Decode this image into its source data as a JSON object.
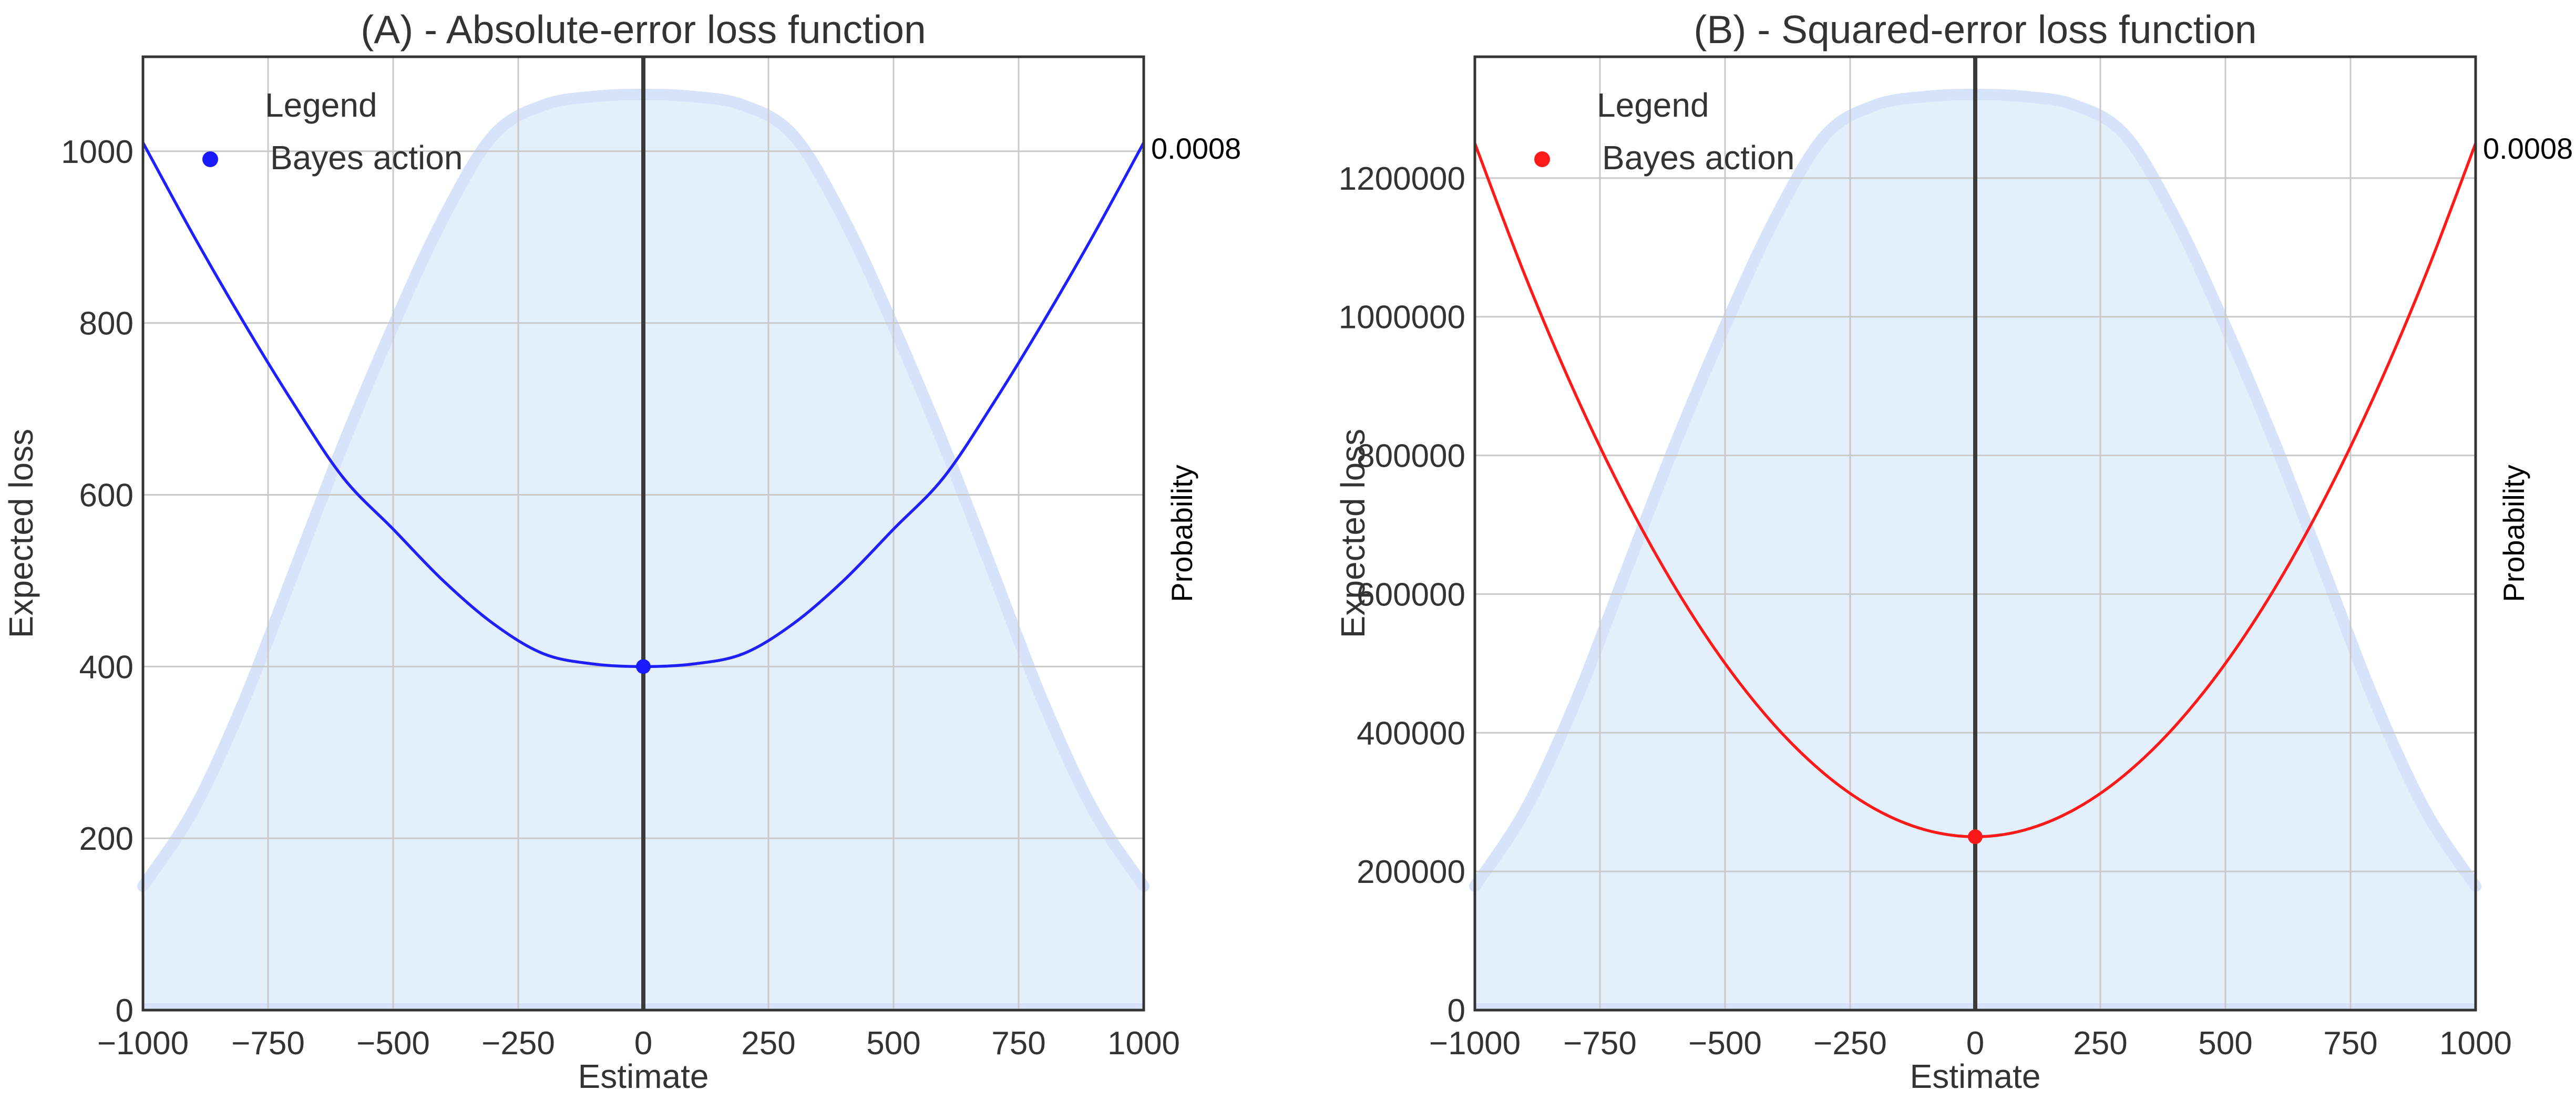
{
  "chart_data": [
    {
      "type": "line",
      "title": "(A) - Absolute-error loss function",
      "xlabel": "Estimate",
      "ylabel": "Expected loss",
      "secondary_ylabel": "Probability",
      "secondary_ytick_label": "0.0008",
      "xlim": [
        -1000,
        1000
      ],
      "ylim": [
        0,
        1110
      ],
      "xticks": [
        -1000,
        -750,
        -500,
        -250,
        0,
        250,
        500,
        750,
        1000
      ],
      "xtick_labels": [
        "−1000",
        "−750",
        "−500",
        "−250",
        "0",
        "250",
        "500",
        "750",
        "1000"
      ],
      "yticks": [
        0,
        200,
        400,
        600,
        800,
        1000
      ],
      "ytick_labels": [
        "0",
        "200",
        "400",
        "600",
        "800",
        "1000"
      ],
      "grid": true,
      "legend": {
        "title": "Legend",
        "placement": "top-left",
        "entries": [
          "Bayes action"
        ]
      },
      "vertical_line_x": 0,
      "series": [
        {
          "type": "line",
          "color": "#1f1fff",
          "x": [
            -1000,
            -900,
            -800,
            -700,
            -600,
            -500,
            -400,
            -300,
            -200,
            -100,
            0,
            100,
            200,
            300,
            400,
            500,
            600,
            700,
            800,
            900,
            1000
          ],
          "y": [
            1010,
            903,
            802,
            707,
            620,
            560,
            500,
            450,
            415,
            403,
            400,
            403,
            415,
            450,
            500,
            560,
            620,
            707,
            802,
            903,
            1010
          ]
        },
        {
          "name": "Bayes action",
          "type": "scatter",
          "color": "#1a1aff",
          "x": [
            0
          ],
          "y": [
            400
          ]
        },
        {
          "type": "area",
          "role": "probability density (secondary axis, peak ≈ 0.00085)",
          "fill": "#e3f0fc",
          "stroke": "#d6e3fb",
          "x": [
            -1000,
            -900,
            -800,
            -700,
            -600,
            -500,
            -400,
            -300,
            -200,
            -100,
            0,
            100,
            200,
            300,
            400,
            500,
            600,
            700,
            800,
            900,
            1000
          ],
          "y": [
            0.000115,
            0.000185,
            0.000285,
            0.000405,
            0.000525,
            0.000635,
            0.000735,
            0.000812,
            0.00084,
            0.000848,
            0.00085,
            0.000848,
            0.00084,
            0.000812,
            0.000735,
            0.000635,
            0.000525,
            0.000405,
            0.000285,
            0.000185,
            0.000115
          ]
        }
      ]
    },
    {
      "type": "line",
      "title": "(B) - Squared-error loss function",
      "xlabel": "Estimate",
      "ylabel": "Expected loss",
      "secondary_ylabel": "Probability",
      "secondary_ytick_label": "0.0008",
      "xlim": [
        -1000,
        1000
      ],
      "ylim": [
        0,
        1375000
      ],
      "xticks": [
        -1000,
        -750,
        -500,
        -250,
        0,
        250,
        500,
        750,
        1000
      ],
      "xtick_labels": [
        "−1000",
        "−750",
        "−500",
        "−250",
        "0",
        "250",
        "500",
        "750",
        "1000"
      ],
      "yticks": [
        0,
        200000,
        400000,
        600000,
        800000,
        1000000,
        1200000
      ],
      "ytick_labels": [
        "0",
        "200000",
        "400000",
        "600000",
        "800000",
        "1000000",
        "1200000"
      ],
      "grid": true,
      "legend": {
        "title": "Legend",
        "placement": "top-left",
        "entries": [
          "Bayes action"
        ]
      },
      "vertical_line_x": 0,
      "series": [
        {
          "type": "line",
          "color": "#ff1a1a",
          "x": [
            -1000,
            -900,
            -800,
            -700,
            -600,
            -500,
            -400,
            -300,
            -200,
            -100,
            0,
            100,
            200,
            300,
            400,
            500,
            600,
            700,
            800,
            900,
            1000
          ],
          "y": [
            1250000,
            1060000,
            890000,
            740000,
            610000,
            500000,
            410000,
            340000,
            290000,
            260000,
            250000,
            260000,
            290000,
            340000,
            410000,
            500000,
            610000,
            740000,
            890000,
            1060000,
            1250000
          ]
        },
        {
          "name": "Bayes action",
          "type": "scatter",
          "color": "#ff1a1a",
          "x": [
            0
          ],
          "y": [
            250000
          ]
        },
        {
          "type": "area",
          "role": "probability density (secondary axis, peak ≈ 0.00085)",
          "fill": "#e3f0fc",
          "stroke": "#d6e3fb",
          "x": [
            -1000,
            -900,
            -800,
            -700,
            -600,
            -500,
            -400,
            -300,
            -200,
            -100,
            0,
            100,
            200,
            300,
            400,
            500,
            600,
            700,
            800,
            900,
            1000
          ],
          "y": [
            0.000115,
            0.000185,
            0.000285,
            0.000405,
            0.000525,
            0.000635,
            0.000735,
            0.000812,
            0.00084,
            0.000848,
            0.00085,
            0.000848,
            0.00084,
            0.000812,
            0.000735,
            0.000635,
            0.000525,
            0.000405,
            0.000285,
            0.000185,
            0.000115
          ]
        }
      ]
    }
  ]
}
